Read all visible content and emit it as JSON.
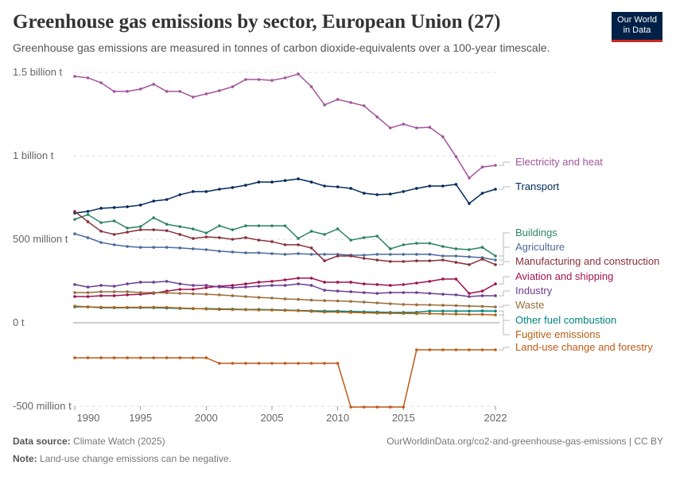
{
  "header": {
    "title": "Greenhouse gas emissions by sector, European Union (27)",
    "subtitle": "Greenhouse gas emissions are measured in tonnes of carbon dioxide-equivalents over a 100-year timescale.",
    "logo": "Our World in Data"
  },
  "footer": {
    "source_label": "Data source:",
    "source": "Climate Watch (2025)",
    "url": "OurWorldinData.org/co2-and-greenhouse-gas-emissions | CC BY",
    "note_label": "Note:",
    "note": "Land-use change emissions can be negative."
  },
  "chart_data": {
    "type": "line",
    "title": "Greenhouse gas emissions by sector, European Union (27)",
    "ylim": [
      -500000000,
      1500000000
    ],
    "yticks": [
      {
        "v": 1500000000,
        "label": "1.5 billion t"
      },
      {
        "v": 1000000000,
        "label": "1 billion t"
      },
      {
        "v": 500000000,
        "label": "500 million t"
      },
      {
        "v": 0,
        "label": "0 t"
      },
      {
        "v": -500000000,
        "label": "-500 million t"
      }
    ],
    "xticks": [
      1990,
      1995,
      2000,
      2005,
      2010,
      2015,
      2022
    ],
    "grid": "horizontal-dashed",
    "legend": "right, inline labels",
    "unit": "million t",
    "x": [
      1990,
      1991,
      1992,
      1993,
      1994,
      1995,
      1996,
      1997,
      1998,
      1999,
      2000,
      2001,
      2002,
      2003,
      2004,
      2005,
      2006,
      2007,
      2008,
      2009,
      2010,
      2011,
      2012,
      2013,
      2014,
      2015,
      2016,
      2017,
      2018,
      2019,
      2020,
      2021,
      2022
    ],
    "series": [
      {
        "name": "Electricity and heat",
        "color": "#a2559c",
        "values": [
          1476,
          1467,
          1438,
          1386,
          1386,
          1400,
          1429,
          1386,
          1386,
          1352,
          1371,
          1390,
          1414,
          1457,
          1457,
          1452,
          1467,
          1490,
          1414,
          1305,
          1338,
          1319,
          1300,
          1233,
          1167,
          1190,
          1167,
          1171,
          1114,
          995,
          867,
          933,
          943
        ]
      },
      {
        "name": "Transport",
        "color": "#00295b",
        "values": [
          657,
          667,
          686,
          690,
          695,
          705,
          729,
          738,
          767,
          786,
          786,
          800,
          810,
          824,
          843,
          843,
          852,
          862,
          843,
          819,
          814,
          805,
          776,
          767,
          771,
          786,
          805,
          819,
          819,
          829,
          714,
          776,
          800
        ]
      },
      {
        "name": "Buildings",
        "color": "#2c8465",
        "values": [
          619,
          648,
          600,
          610,
          567,
          576,
          629,
          590,
          576,
          562,
          538,
          581,
          557,
          581,
          581,
          581,
          581,
          505,
          548,
          529,
          562,
          495,
          510,
          519,
          443,
          467,
          476,
          476,
          457,
          443,
          438,
          452,
          400
        ]
      },
      {
        "name": "Agriculture",
        "color": "#4c6a9c",
        "values": [
          533,
          510,
          481,
          467,
          457,
          452,
          452,
          452,
          448,
          443,
          438,
          429,
          424,
          419,
          419,
          414,
          410,
          414,
          410,
          410,
          410,
          405,
          405,
          410,
          410,
          410,
          410,
          410,
          400,
          400,
          395,
          390,
          376
        ]
      },
      {
        "name": "Manufacturing and construction",
        "color": "#883039",
        "values": [
          667,
          605,
          548,
          529,
          543,
          557,
          557,
          552,
          529,
          505,
          514,
          510,
          500,
          510,
          495,
          486,
          467,
          467,
          448,
          371,
          400,
          400,
          386,
          376,
          367,
          367,
          371,
          371,
          376,
          362,
          348,
          381,
          348
        ]
      },
      {
        "name": "Aviation and shipping",
        "color": "#a2124f",
        "values": [
          157,
          157,
          162,
          162,
          167,
          171,
          176,
          190,
          200,
          200,
          210,
          219,
          224,
          233,
          243,
          248,
          257,
          267,
          267,
          243,
          243,
          243,
          233,
          229,
          224,
          229,
          238,
          248,
          262,
          262,
          176,
          190,
          233
        ]
      },
      {
        "name": "Industry",
        "color": "#6d3e91",
        "values": [
          229,
          214,
          224,
          219,
          233,
          243,
          243,
          248,
          233,
          224,
          224,
          214,
          210,
          214,
          219,
          224,
          224,
          233,
          224,
          195,
          190,
          186,
          181,
          176,
          181,
          181,
          181,
          176,
          171,
          167,
          157,
          162,
          162
        ]
      },
      {
        "name": "Waste",
        "color": "#996d39",
        "values": [
          181,
          181,
          186,
          186,
          186,
          181,
          181,
          179,
          176,
          174,
          171,
          167,
          162,
          157,
          152,
          148,
          143,
          140,
          136,
          133,
          131,
          128,
          124,
          119,
          114,
          110,
          108,
          107,
          105,
          103,
          100,
          98,
          95
        ]
      },
      {
        "name": "Other fuel combustion",
        "color": "#00847e",
        "values": [
          95,
          95,
          90,
          90,
          90,
          90,
          90,
          88,
          86,
          84,
          85,
          83,
          82,
          80,
          80,
          78,
          76,
          74,
          72,
          70,
          70,
          68,
          66,
          64,
          62,
          62,
          63,
          70,
          70,
          70,
          70,
          71,
          70
        ]
      },
      {
        "name": "Fugitive emissions",
        "color": "#b16214",
        "values": [
          100,
          95,
          93,
          92,
          92,
          93,
          93,
          92,
          88,
          86,
          82,
          80,
          79,
          78,
          77,
          76,
          74,
          72,
          68,
          64,
          64,
          62,
          60,
          58,
          57,
          56,
          55,
          55,
          53,
          52,
          50,
          50,
          47
        ]
      },
      {
        "name": "Land-use change and forestry",
        "color": "#c05917",
        "values": [
          -210,
          -210,
          -210,
          -210,
          -210,
          -210,
          -210,
          -210,
          -210,
          -210,
          -210,
          -243,
          -243,
          -243,
          -243,
          -243,
          -243,
          -243,
          -243,
          -243,
          -243,
          -505,
          -505,
          -505,
          -505,
          -505,
          -162,
          -162,
          -162,
          -162,
          -162,
          -162,
          -162
        ]
      }
    ]
  }
}
